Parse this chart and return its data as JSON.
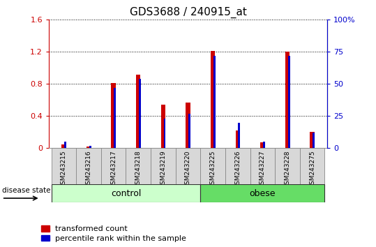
{
  "title": "GDS3688 / 240915_at",
  "samples": [
    "GSM243215",
    "GSM243216",
    "GSM243217",
    "GSM243218",
    "GSM243219",
    "GSM243220",
    "GSM243225",
    "GSM243226",
    "GSM243227",
    "GSM243228",
    "GSM243275"
  ],
  "transformed_count": [
    0.05,
    0.02,
    0.81,
    0.92,
    0.54,
    0.57,
    1.21,
    0.22,
    0.07,
    1.2,
    0.2
  ],
  "percentile_rank_pct": [
    5.0,
    2.0,
    47.0,
    54.0,
    23.0,
    27.0,
    72.0,
    20.0,
    5.0,
    72.0,
    12.0
  ],
  "groups": [
    "control",
    "control",
    "control",
    "control",
    "control",
    "control",
    "obese",
    "obese",
    "obese",
    "obese",
    "obese"
  ],
  "control_color_light": "#ccffcc",
  "control_color_dark": "#55cc55",
  "obese_color_light": "#66dd66",
  "obese_color_dark": "#22aa22",
  "bar_color_red": "#cc0000",
  "bar_color_blue": "#0000cc",
  "plot_bg": "#ffffff",
  "sample_box_bg": "#d8d8d8",
  "sample_box_edge": "#888888",
  "ylim_left": [
    0,
    1.6
  ],
  "ylim_right": [
    0,
    100
  ],
  "yticks_left": [
    0,
    0.4,
    0.8,
    1.2,
    1.6
  ],
  "yticks_right": [
    0,
    25,
    50,
    75,
    100
  ],
  "ytick_labels_left": [
    "0",
    "0.4",
    "0.8",
    "1.2",
    "1.6"
  ],
  "ytick_labels_right": [
    "0",
    "25",
    "50",
    "75",
    "100%"
  ],
  "title_fontsize": 11,
  "tick_fontsize": 8,
  "label_fontsize": 9,
  "sample_fontsize": 6.5,
  "legend_fontsize": 8,
  "group_label_fontsize": 9
}
